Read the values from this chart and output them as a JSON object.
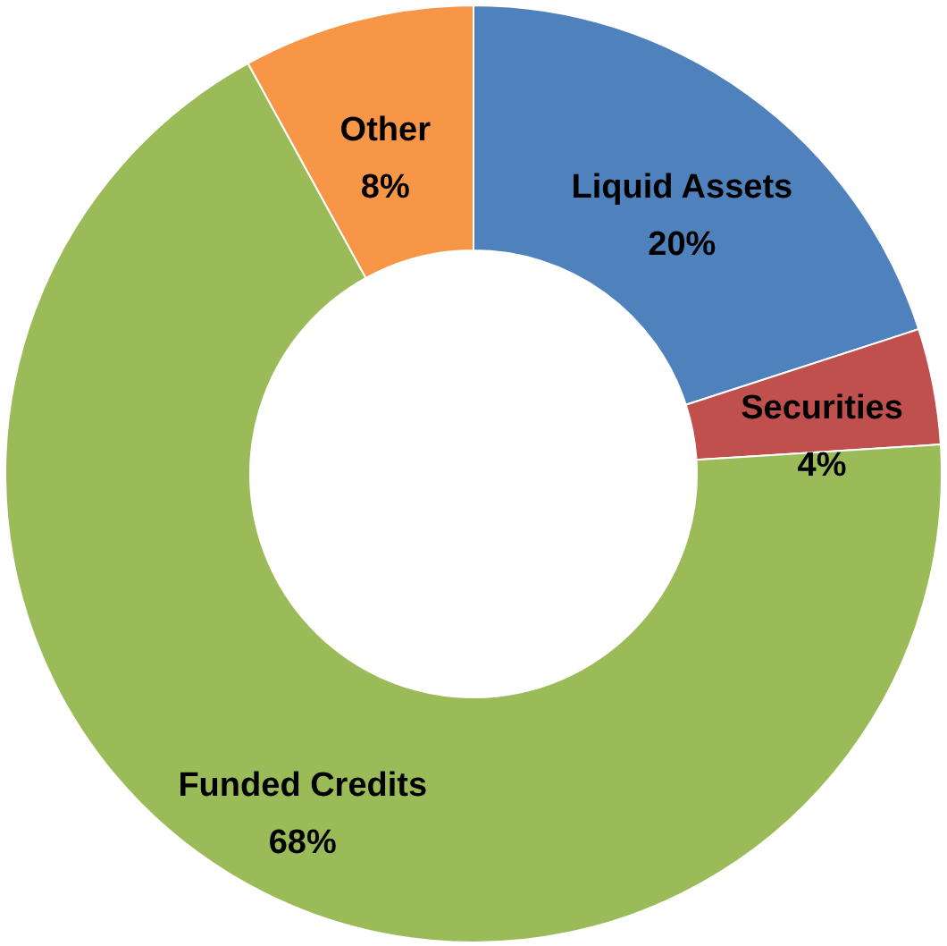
{
  "chart_data": {
    "type": "donut",
    "categories": [
      "Liquid Assets",
      "Securities",
      "Funded Credits",
      "Other"
    ],
    "values": [
      20,
      4,
      68,
      8
    ],
    "value_labels": [
      "20%",
      "4%",
      "68%",
      "8%"
    ],
    "colors": [
      "#4f81bd",
      "#c0504d",
      "#9bbb59",
      "#f79646"
    ],
    "legend": false
  }
}
